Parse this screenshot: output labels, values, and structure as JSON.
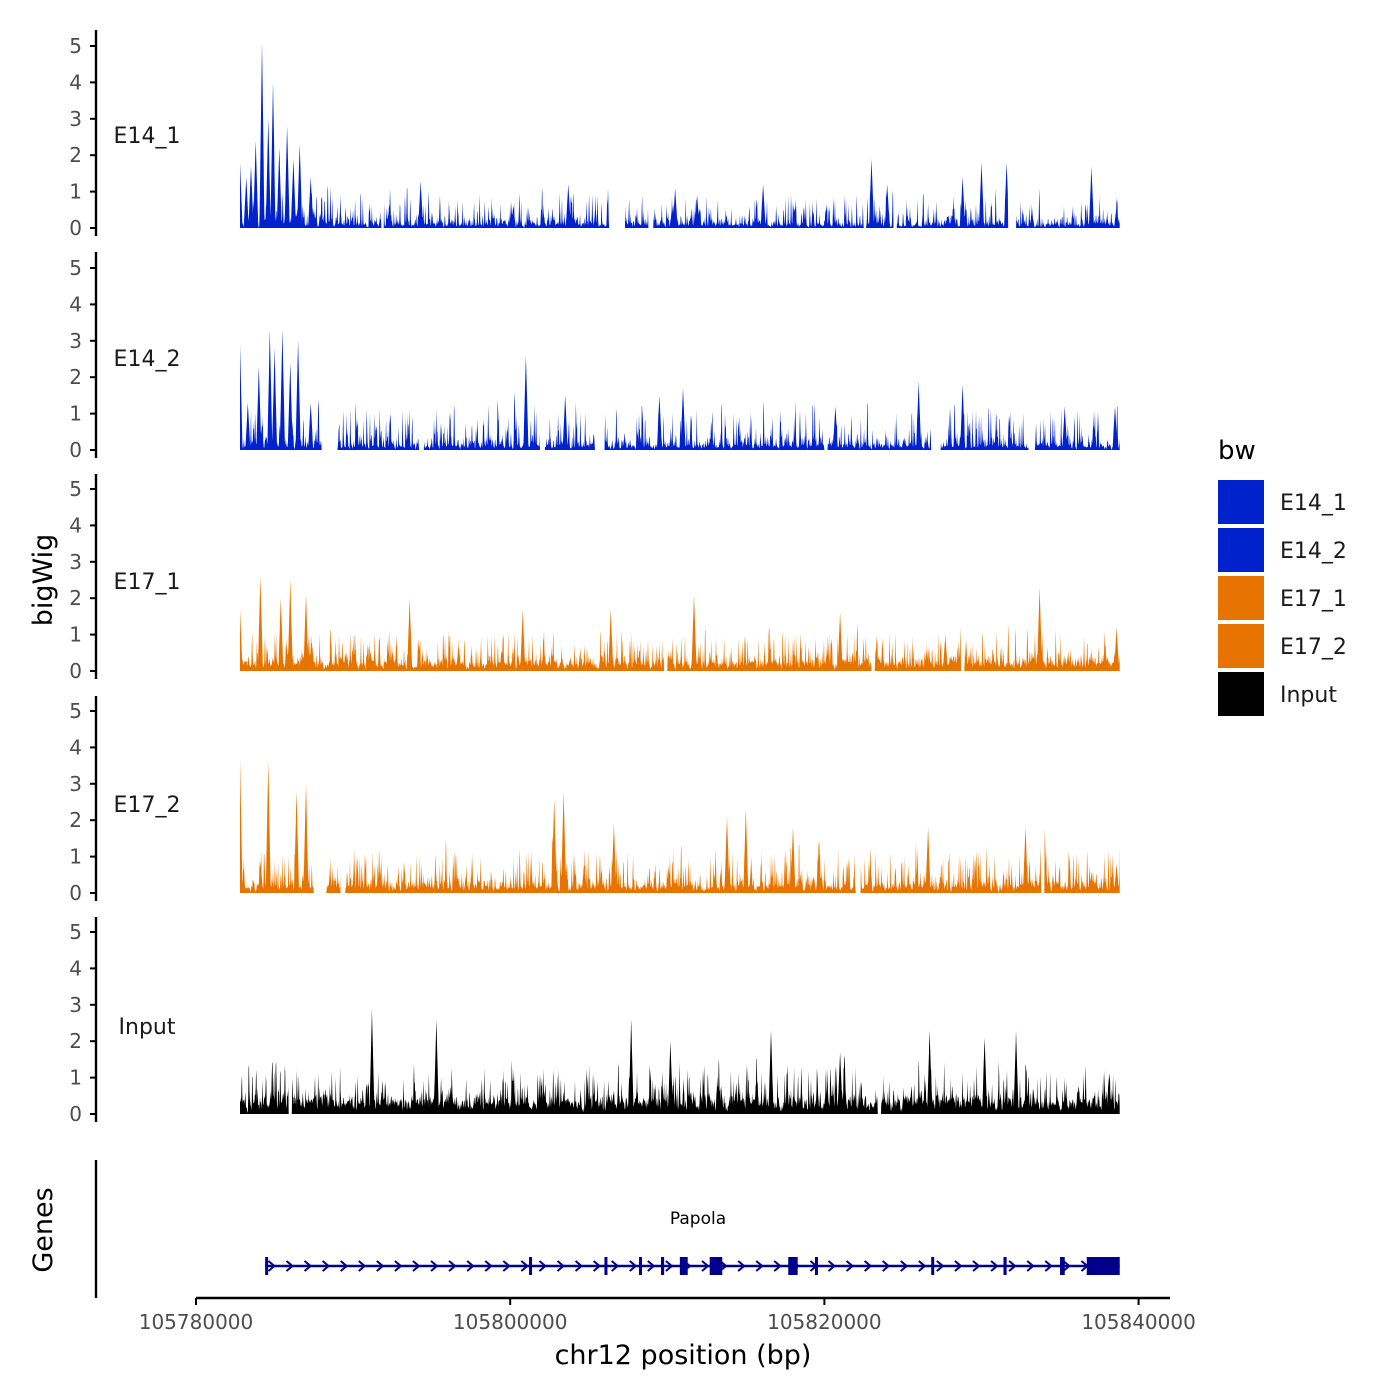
{
  "chart_data": {
    "type": "area",
    "title": "",
    "xlabel": "chr12 position (bp)",
    "ylabel": "bigWig",
    "genes_label": "Genes",
    "xlim": [
      105780000,
      105842000
    ],
    "x_ticks": [
      105780000,
      105800000,
      105820000,
      105840000
    ],
    "x_tick_labels": [
      "105780000",
      "105800000",
      "105820000",
      "105840000"
    ],
    "y_ticks": [
      0,
      1,
      2,
      3,
      4,
      5
    ],
    "y_tick_labels": [
      "0",
      "1",
      "2",
      "3",
      "4",
      "5"
    ],
    "ylim": [
      0,
      5.2
    ],
    "region": [
      105782800,
      105838800
    ],
    "legend": {
      "title": "bw",
      "position": "right",
      "entries": [
        {
          "label": "E14_1",
          "color": "#0022cc"
        },
        {
          "label": "E14_2",
          "color": "#0022cc"
        },
        {
          "label": "E17_1",
          "color": "#e87400"
        },
        {
          "label": "E17_2",
          "color": "#e87400"
        },
        {
          "label": "Input",
          "color": "#000000"
        }
      ]
    },
    "series": [
      {
        "name": "E14_1",
        "label": "E14_1",
        "color": "#0022cc",
        "seed": 11,
        "peaks": [
          [
            105782800,
            1.8
          ],
          [
            105783200,
            1.4
          ],
          [
            105783500,
            1.7
          ],
          [
            105783800,
            2.4
          ],
          [
            105784200,
            5.1
          ],
          [
            105784600,
            3.0
          ],
          [
            105784900,
            4.0
          ],
          [
            105785300,
            2.2
          ],
          [
            105785800,
            2.8
          ],
          [
            105786200,
            1.9
          ],
          [
            105786600,
            2.3
          ],
          [
            105787300,
            1.4
          ],
          [
            105787500,
            0.5
          ],
          [
            105788500,
            0.2
          ],
          [
            105794300,
            1.3
          ],
          [
            105800200,
            0.6
          ],
          [
            105803700,
            1.2
          ],
          [
            105810500,
            1.1
          ],
          [
            105811900,
            0.9
          ],
          [
            105816100,
            1.2
          ],
          [
            105823000,
            1.9
          ],
          [
            105824000,
            1.2
          ],
          [
            105828800,
            1.4
          ],
          [
            105830000,
            1.8
          ],
          [
            105831600,
            1.8
          ],
          [
            105837000,
            1.7
          ],
          [
            105838600,
            0.6
          ]
        ],
        "zero_ranges": [
          [
            105791800,
            105791950
          ],
          [
            105806300,
            105807300
          ],
          [
            105808800,
            105809100
          ],
          [
            105822500,
            105822650
          ],
          [
            105824400,
            105824600
          ],
          [
            105831700,
            105832200
          ]
        ],
        "noise": 0.75,
        "base": 0.12
      },
      {
        "name": "E14_2",
        "label": "E14_2",
        "color": "#0022cc",
        "seed": 23,
        "peaks": [
          [
            105782800,
            2.9
          ],
          [
            105783300,
            1.3
          ],
          [
            105784000,
            2.3
          ],
          [
            105784700,
            3.3
          ],
          [
            105785000,
            2.8
          ],
          [
            105785500,
            3.3
          ],
          [
            105786000,
            2.4
          ],
          [
            105786500,
            3.0
          ],
          [
            105787300,
            1.3
          ],
          [
            105801000,
            2.6
          ],
          [
            105803500,
            1.5
          ],
          [
            105809500,
            1.5
          ],
          [
            105811000,
            1.7
          ],
          [
            105820700,
            1.2
          ],
          [
            105826000,
            1.9
          ],
          [
            105828800,
            1.8
          ],
          [
            105835300,
            1.2
          ],
          [
            105838500,
            1.2
          ]
        ],
        "zero_ranges": [
          [
            105788000,
            105789000
          ],
          [
            105794200,
            105794500
          ],
          [
            105801900,
            105802200
          ],
          [
            105805400,
            105806000
          ],
          [
            105820000,
            105820200
          ],
          [
            105826800,
            105827400
          ],
          [
            105833000,
            105833400
          ]
        ],
        "noise": 0.95,
        "base": 0.15
      },
      {
        "name": "E17_1",
        "label": "E17_1",
        "color": "#e87400",
        "seed": 37,
        "peaks": [
          [
            105782800,
            1.7
          ],
          [
            105784100,
            2.6
          ],
          [
            105785400,
            2.0
          ],
          [
            105786000,
            2.5
          ],
          [
            105787000,
            2.1
          ],
          [
            105793600,
            2.0
          ],
          [
            105800800,
            1.7
          ],
          [
            105806400,
            1.7
          ],
          [
            105811700,
            2.1
          ],
          [
            105821000,
            1.6
          ],
          [
            105827700,
            1.0
          ],
          [
            105833700,
            2.3
          ],
          [
            105838600,
            1.2
          ]
        ],
        "zero_ranges": [
          [
            105809800,
            105810000
          ],
          [
            105823000,
            105823200
          ],
          [
            105828700,
            105828900
          ]
        ],
        "noise": 0.85,
        "base": 0.3
      },
      {
        "name": "E17_2",
        "label": "E17_2",
        "color": "#e87400",
        "seed": 51,
        "peaks": [
          [
            105782800,
            3.7
          ],
          [
            105784600,
            3.6
          ],
          [
            105786400,
            2.8
          ],
          [
            105787000,
            3.0
          ],
          [
            105802800,
            2.6
          ],
          [
            105803400,
            2.8
          ],
          [
            105806600,
            1.9
          ],
          [
            105813800,
            2.1
          ],
          [
            105815000,
            2.3
          ],
          [
            105818000,
            1.8
          ],
          [
            105826600,
            1.8
          ],
          [
            105832800,
            1.8
          ],
          [
            105834000,
            2.1
          ],
          [
            105838600,
            0.8
          ]
        ],
        "zero_ranges": [
          [
            105787500,
            105788300
          ],
          [
            105789200,
            105789500
          ],
          [
            105822000,
            105822300
          ],
          [
            105833800,
            105834000
          ]
        ],
        "noise": 0.95,
        "base": 0.25
      },
      {
        "name": "Input",
        "label": "Input",
        "color": "#000000",
        "seed": 73,
        "peaks": [
          [
            105791200,
            2.9
          ],
          [
            105795300,
            2.6
          ],
          [
            105807700,
            2.6
          ],
          [
            105810200,
            2.0
          ],
          [
            105816600,
            2.3
          ],
          [
            105821000,
            1.7
          ],
          [
            105826700,
            2.3
          ],
          [
            105830200,
            2.1
          ],
          [
            105832200,
            2.3
          ]
        ],
        "zero_ranges": [
          [
            105785900,
            105786100
          ],
          [
            105823400,
            105823600
          ]
        ],
        "noise": 0.9,
        "base": 0.5
      }
    ],
    "gene": {
      "name": "Papola",
      "strand": "+",
      "start": 105784400,
      "end": 105838800,
      "color": "#00008b",
      "exons": [
        [
          105784400,
          105784500
        ],
        [
          105801200,
          105801300
        ],
        [
          105806000,
          105806100
        ],
        [
          105808200,
          105808300
        ],
        [
          105809600,
          105809800
        ],
        [
          105810800,
          105811300
        ],
        [
          105812700,
          105813500
        ],
        [
          105817700,
          105818300
        ],
        [
          105819400,
          105819500
        ],
        [
          105826800,
          105826900
        ],
        [
          105831400,
          105831600
        ],
        [
          105835000,
          105835300
        ],
        [
          105836700,
          105838800
        ]
      ]
    }
  }
}
